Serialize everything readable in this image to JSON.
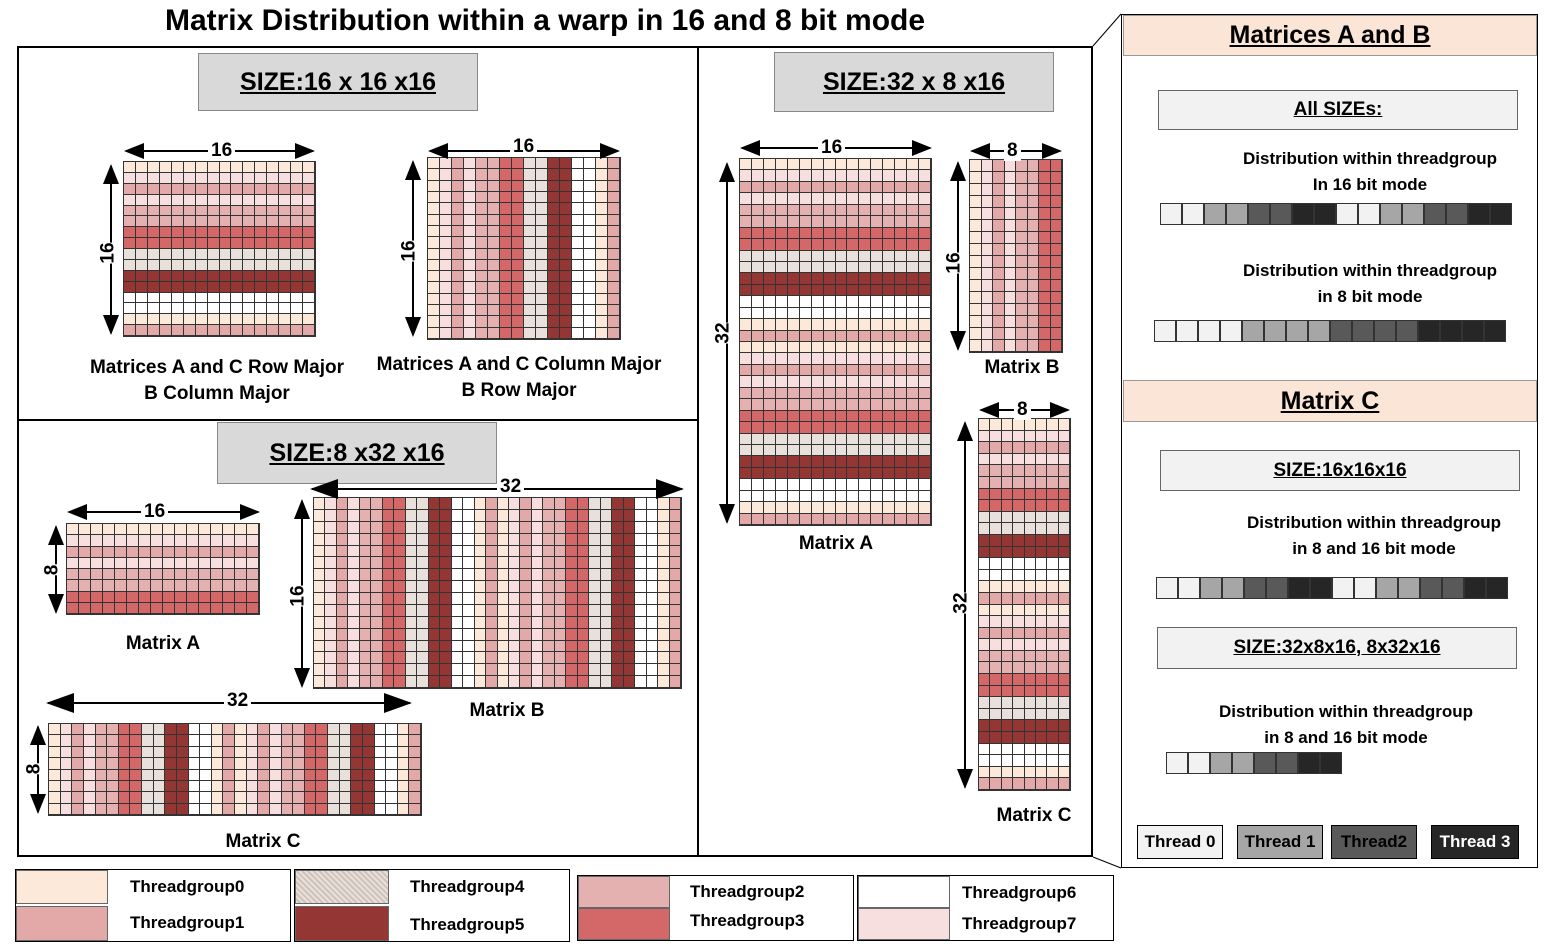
{
  "title": "Matrix Distribution within a warp in 16 and 8 bit mode",
  "colors": {
    "tg0": "#fde9da",
    "tg1": "#e3a9a9",
    "tg2": "#e5b0b0",
    "tg3": "#d46767",
    "tg4": "#e8e0da",
    "tg5": "#943634",
    "tg6": "#ffffff",
    "tg7": "#f7dfdf",
    "thread0": "#f2f2f2",
    "thread1": "#a6a6a6",
    "thread2": "#595959",
    "thread3": "#262626",
    "header_bg": "#fbe5d6",
    "size_bg": "#d9d9d9"
  },
  "left": {
    "size1": {
      "label": "SIZE:16 x 16 x16",
      "mat1": {
        "width_label": "16",
        "height_label": "16",
        "caption_line1": "Matrices A and C Row Major",
        "caption_line2": "B Column Major",
        "pattern": "rows",
        "rows": 16,
        "cols": 16
      },
      "mat2": {
        "width_label": "16",
        "height_label": "16",
        "caption_line1": "Matrices A and C Column Major",
        "caption_line2": "B Row Major",
        "pattern": "cols",
        "rows": 16,
        "cols": 16
      }
    },
    "size2": {
      "label": "SIZE:8 x32 x16",
      "matA": {
        "width_label": "16",
        "height_label": "8",
        "caption": "Matrix A",
        "pattern": "rows",
        "rows": 8,
        "cols": 16
      },
      "matB": {
        "width_label": "32",
        "height_label": "16",
        "caption": "Matrix B",
        "pattern": "cols",
        "rows": 16,
        "cols": 32
      },
      "matC": {
        "width_label": "32",
        "height_label": "8",
        "caption": "Matrix C",
        "pattern": "cols",
        "rows": 8,
        "cols": 32
      }
    }
  },
  "middle": {
    "label": "SIZE:32 x 8 x16",
    "matA": {
      "width_label": "16",
      "height_label": "32",
      "caption": "Matrix A",
      "pattern": "rows",
      "rows": 32,
      "cols": 16
    },
    "matB": {
      "width_label": "8",
      "height_label": "16",
      "caption": "Matrix B",
      "pattern": "cols",
      "rows": 16,
      "cols": 8
    },
    "matC": {
      "width_label": "8",
      "height_label": "32",
      "caption": "Matrix C",
      "pattern": "rows",
      "rows": 32,
      "cols": 8
    }
  },
  "right": {
    "ab_header": "Matrices A and B",
    "ab_all_sizes": "All SIZEs:",
    "ab_desc16_line1": "Distribution within threadgroup",
    "ab_desc16_line2": "In 16 bit mode",
    "ab_strip16": [
      0,
      0,
      1,
      1,
      2,
      2,
      3,
      3,
      0,
      0,
      1,
      1,
      2,
      2,
      3,
      3
    ],
    "ab_desc8_line1": "Distribution within threadgroup",
    "ab_desc8_line2": "in 8 bit mode",
    "ab_strip8": [
      0,
      0,
      0,
      0,
      1,
      1,
      1,
      1,
      2,
      2,
      2,
      2,
      3,
      3,
      3,
      3
    ],
    "c_header": "Matrix C",
    "c_size1": "SIZE:16x16x16",
    "c_desc1_line1": "Distribution within threadgroup",
    "c_desc1_line2": "in 8 and 16 bit mode",
    "c_strip1": [
      0,
      0,
      1,
      1,
      2,
      2,
      3,
      3,
      0,
      0,
      1,
      1,
      2,
      2,
      3,
      3
    ],
    "c_size2": "SIZE:32x8x16, 8x32x16",
    "c_desc2_line1": "Distribution within threadgroup",
    "c_desc2_line2": "in 8 and 16 bit mode",
    "c_strip2": [
      0,
      0,
      1,
      1,
      2,
      2,
      3,
      3
    ],
    "threads": [
      "Thread 0",
      "Thread 1",
      "Thread2",
      "Thread 3"
    ]
  },
  "legend": [
    "Threadgroup0",
    "Threadgroup1",
    "Threadgroup4",
    "Threadgroup5",
    "Threadgroup2",
    "Threadgroup3",
    "Threadgroup6",
    "Threadgroup7"
  ]
}
